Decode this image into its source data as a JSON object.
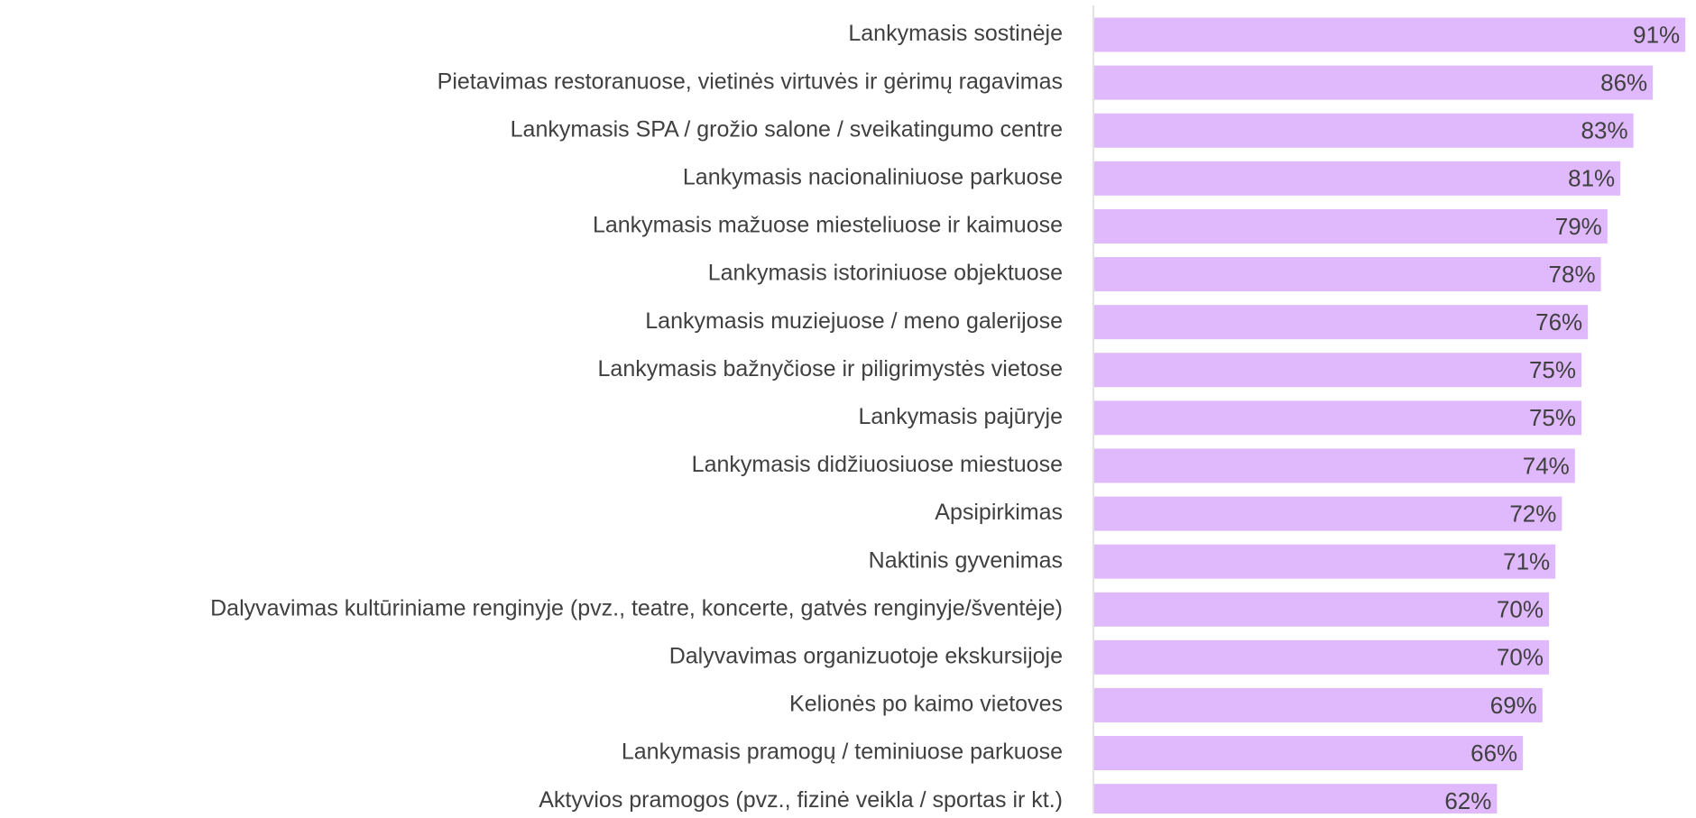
{
  "chart_data": {
    "type": "bar",
    "orientation": "horizontal",
    "categories": [
      "Lankymasis sostinėje",
      "Pietavimas restoranuose, vietinės virtuvės ir gėrimų ragavimas",
      "Lankymasis SPA / grožio salone / sveikatingumo centre",
      "Lankymasis nacionaliniuose parkuose",
      "Lankymasis mažuose miesteliuose ir kaimuose",
      "Lankymasis istoriniuose objektuose",
      "Lankymasis muziejuose / meno galerijose",
      "Lankymasis bažnyčiose ir piligrimystės vietose",
      "Lankymasis pajūryje",
      "Lankymasis didžiuosiuose miestuose",
      "Apsipirkimas",
      "Naktinis gyvenimas",
      "Dalyvavimas kultūriniame renginyje (pvz., teatre, koncerte, gatvės renginyje/šventėje)",
      "Dalyvavimas organizuotoje ekskursijoje",
      "Kelionės po kaimo vietoves",
      "Lankymasis pramogų / teminiuose parkuose",
      "Aktyvios pramogos (pvz., fizinė veikla / sportas ir kt.)"
    ],
    "values": [
      91,
      86,
      83,
      81,
      79,
      78,
      76,
      75,
      75,
      74,
      72,
      71,
      70,
      70,
      69,
      66,
      62
    ],
    "value_labels": [
      "91%",
      "86%",
      "83%",
      "81%",
      "79%",
      "78%",
      "76%",
      "75%",
      "75%",
      "74%",
      "72%",
      "71%",
      "70%",
      "70%",
      "69%",
      "66%",
      "62%"
    ],
    "color": "#dfb9fb"
  }
}
